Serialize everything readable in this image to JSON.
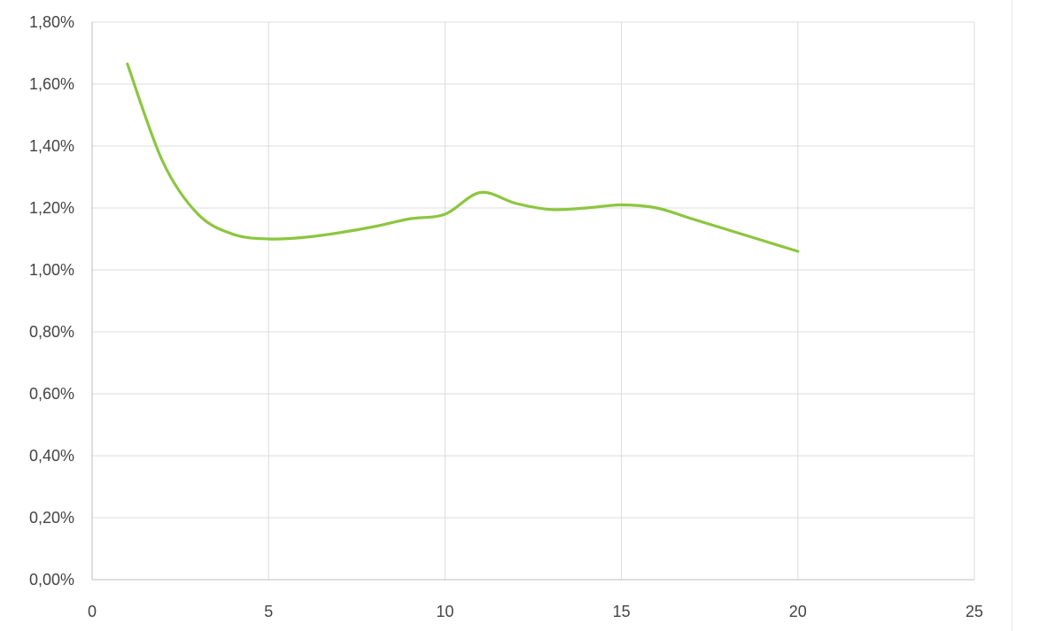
{
  "chart_data": {
    "type": "line",
    "title": "",
    "xlabel": "",
    "ylabel": "",
    "xlim": [
      0,
      25
    ],
    "ylim": [
      0,
      1.8
    ],
    "x_ticks": [
      0,
      5,
      10,
      15,
      20,
      25
    ],
    "x_tick_labels": [
      "0",
      "5",
      "10",
      "15",
      "20",
      "25"
    ],
    "y_ticks": [
      0,
      0.2,
      0.4,
      0.6,
      0.8,
      1.0,
      1.2,
      1.4,
      1.6,
      1.8
    ],
    "y_tick_labels": [
      "0,00%",
      "0,20%",
      "0,40%",
      "0,60%",
      "0,80%",
      "1,00%",
      "1,20%",
      "1,40%",
      "1,60%",
      "1,80%"
    ],
    "grid": true,
    "legend": "none",
    "series": [
      {
        "color": "#8cc63f",
        "smooth": true,
        "x": [
          1,
          2,
          3,
          4,
          5,
          6,
          7,
          8,
          9,
          10,
          11,
          12,
          13,
          14,
          15,
          16,
          17,
          18,
          19,
          20
        ],
        "y": [
          1.665,
          1.35,
          1.18,
          1.115,
          1.1,
          1.105,
          1.12,
          1.14,
          1.165,
          1.18,
          1.25,
          1.215,
          1.195,
          1.2,
          1.21,
          1.2,
          1.165,
          1.13,
          1.095,
          1.06
        ]
      }
    ]
  }
}
